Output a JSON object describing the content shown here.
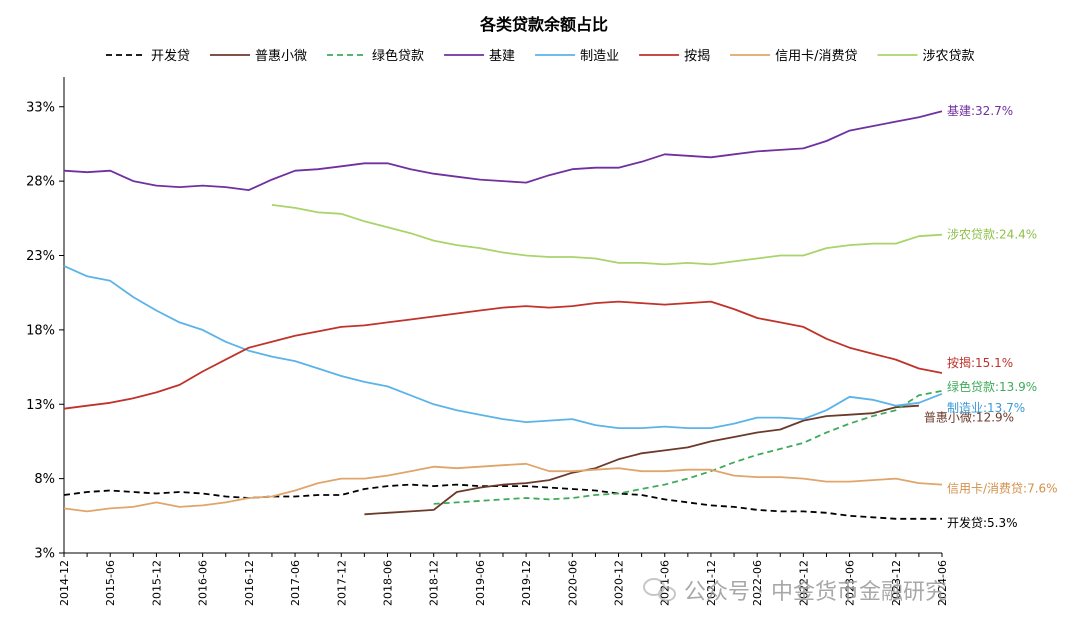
{
  "chart_data": {
    "type": "line",
    "title": "各类贷款余额占比",
    "xlabel": "",
    "ylabel": "",
    "y_ticks": [
      "3%",
      "8%",
      "13%",
      "18%",
      "23%",
      "28%",
      "33%"
    ],
    "ylim": [
      3,
      35
    ],
    "x_periods": 39,
    "x_ticks": [
      {
        "label": "2014-12",
        "i": 0
      },
      {
        "label": "2015-06",
        "i": 2
      },
      {
        "label": "2015-12",
        "i": 4
      },
      {
        "label": "2016-06",
        "i": 6
      },
      {
        "label": "2016-12",
        "i": 8
      },
      {
        "label": "2017-06",
        "i": 10
      },
      {
        "label": "2017-12",
        "i": 12
      },
      {
        "label": "2018-06",
        "i": 14
      },
      {
        "label": "2018-12",
        "i": 16
      },
      {
        "label": "2019-06",
        "i": 18
      },
      {
        "label": "2019-12",
        "i": 20
      },
      {
        "label": "2020-06",
        "i": 22
      },
      {
        "label": "2020-12",
        "i": 24
      },
      {
        "label": "2021-06",
        "i": 26
      },
      {
        "label": "2021-12",
        "i": 28
      },
      {
        "label": "2022-06",
        "i": 30
      },
      {
        "label": "2022-12",
        "i": 32
      },
      {
        "label": "2023-06",
        "i": 34
      },
      {
        "label": "2023-12",
        "i": 36
      },
      {
        "label": "2024-06",
        "i": 38
      }
    ],
    "grid": false,
    "legend_position": "top",
    "series": [
      {
        "name": "开发贷",
        "color": "#000000",
        "dash": "dash",
        "start": 0,
        "values": [
          6.9,
          7.1,
          7.2,
          7.1,
          7.0,
          7.1,
          7.0,
          6.8,
          6.7,
          6.8,
          6.8,
          6.9,
          6.9,
          7.3,
          7.5,
          7.6,
          7.5,
          7.6,
          7.5,
          7.5,
          7.5,
          7.4,
          7.3,
          7.2,
          7.0,
          6.9,
          6.6,
          6.4,
          6.2,
          6.1,
          5.9,
          5.8,
          5.8,
          5.7,
          5.5,
          5.4,
          5.3,
          5.3,
          5.3
        ],
        "end_label": "开发贷:5.3%",
        "label_color": "#000000"
      },
      {
        "name": "普惠小微",
        "color": "#6b3a2a",
        "dash": "solid",
        "start": 13,
        "values": [
          5.6,
          5.7,
          5.8,
          5.9,
          7.1,
          7.4,
          7.6,
          7.7,
          7.9,
          8.4,
          8.7,
          9.3,
          9.7,
          9.9,
          10.1,
          10.5,
          10.8,
          11.1,
          11.3,
          11.9,
          12.2,
          12.3,
          12.4,
          12.8,
          12.9
        ],
        "end_label": "普惠小微:12.9%",
        "label_color": "#6b3a2a"
      },
      {
        "name": "绿色贷款",
        "color": "#3faa5a",
        "dash": "dash",
        "start": 16,
        "values": [
          6.3,
          6.4,
          6.5,
          6.6,
          6.7,
          6.6,
          6.7,
          6.9,
          7.0,
          7.3,
          7.6,
          8.0,
          8.5,
          9.1,
          9.6,
          10.0,
          10.4,
          11.1,
          11.7,
          12.2,
          12.6,
          13.6,
          13.9
        ],
        "end_label": "绿色贷款:13.9%",
        "label_color": "#3faa5a"
      },
      {
        "name": "基建",
        "color": "#7030a0",
        "dash": "solid",
        "start": 0,
        "values": [
          28.7,
          28.6,
          28.7,
          28.0,
          27.7,
          27.6,
          27.7,
          27.6,
          27.4,
          28.1,
          28.7,
          28.8,
          29.0,
          29.2,
          29.2,
          28.8,
          28.5,
          28.3,
          28.1,
          28.0,
          27.9,
          28.4,
          28.8,
          28.9,
          28.9,
          29.3,
          29.8,
          29.7,
          29.6,
          29.8,
          30.0,
          30.1,
          30.2,
          30.7,
          31.4,
          31.7,
          32.0,
          32.3,
          32.7
        ],
        "end_label": "基建:32.7%",
        "label_color": "#7030a0"
      },
      {
        "name": "制造业",
        "color": "#5bb3e8",
        "dash": "solid",
        "start": 0,
        "values": [
          22.3,
          21.6,
          21.3,
          20.2,
          19.3,
          18.5,
          18.0,
          17.2,
          16.6,
          16.2,
          15.9,
          15.4,
          14.9,
          14.5,
          14.2,
          13.6,
          13.0,
          12.6,
          12.3,
          12.0,
          11.8,
          11.9,
          12.0,
          11.6,
          11.4,
          11.4,
          11.5,
          11.4,
          11.4,
          11.7,
          12.1,
          12.1,
          12.0,
          12.6,
          13.5,
          13.3,
          12.9,
          13.1,
          13.7
        ],
        "end_label": "制造业:13.7%",
        "label_color": "#3a9ad9"
      },
      {
        "name": "按揭",
        "color": "#c0322a",
        "dash": "solid",
        "start": 0,
        "values": [
          12.7,
          12.9,
          13.1,
          13.4,
          13.8,
          14.3,
          15.2,
          16.0,
          16.8,
          17.2,
          17.6,
          17.9,
          18.2,
          18.3,
          18.5,
          18.7,
          18.9,
          19.1,
          19.3,
          19.5,
          19.6,
          19.5,
          19.6,
          19.8,
          19.9,
          19.8,
          19.7,
          19.8,
          19.9,
          19.4,
          18.8,
          18.5,
          18.2,
          17.4,
          16.8,
          16.4,
          16.0,
          15.4,
          15.1
        ],
        "end_label": "按揭:15.1%",
        "label_color": "#c0322a"
      },
      {
        "name": "信用卡/消费贷",
        "color": "#e0a56a",
        "dash": "solid",
        "start": 0,
        "values": [
          6.0,
          5.8,
          6.0,
          6.1,
          6.4,
          6.1,
          6.2,
          6.4,
          6.7,
          6.8,
          7.2,
          7.7,
          8.0,
          8.0,
          8.2,
          8.5,
          8.8,
          8.7,
          8.8,
          8.9,
          9.0,
          8.5,
          8.5,
          8.6,
          8.7,
          8.5,
          8.5,
          8.6,
          8.6,
          8.2,
          8.1,
          8.1,
          8.0,
          7.8,
          7.8,
          7.9,
          8.0,
          7.7,
          7.6
        ],
        "end_label": "信用卡/消费贷:7.6%",
        "label_color": "#d4904a"
      },
      {
        "name": "涉农贷款",
        "color": "#a8d46a",
        "dash": "solid",
        "start": 9,
        "values": [
          26.4,
          26.2,
          25.9,
          25.8,
          25.3,
          24.9,
          24.5,
          24.0,
          23.7,
          23.5,
          23.2,
          23.0,
          22.9,
          22.9,
          22.8,
          22.5,
          22.5,
          22.4,
          22.5,
          22.4,
          22.6,
          22.8,
          23.0,
          23.0,
          23.5,
          23.7,
          23.8,
          23.8,
          24.3,
          24.4
        ],
        "end_label": "涉农贷款:24.4%",
        "label_color": "#8fc04a"
      }
    ]
  },
  "watermark": {
    "text": "公众号 · 中金货币金融研究"
  }
}
